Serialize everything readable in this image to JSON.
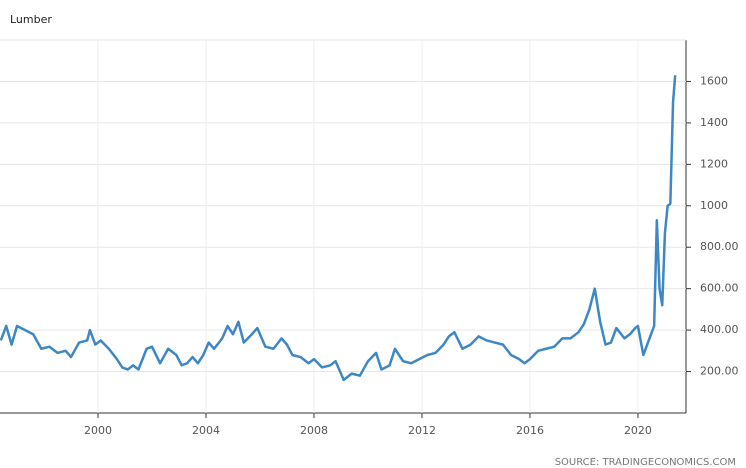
{
  "chart_data": {
    "type": "line",
    "title": "Lumber",
    "source": "SOURCE: TRADINGECONOMICS.COM",
    "color": "#3d87c4",
    "grid": true,
    "xlim": [
      1996.37,
      2021.78
    ],
    "xticks": [
      2000,
      2004,
      2008,
      2012,
      2016,
      2020
    ],
    "ylim": [
      0,
      1800
    ],
    "yticks": [
      {
        "value": 200,
        "label": "200.00"
      },
      {
        "value": 400,
        "label": "400.00"
      },
      {
        "value": 600,
        "label": "600.00"
      },
      {
        "value": 800,
        "label": "800.00"
      },
      1000,
      1200,
      1400,
      1600
    ],
    "x": [
      1996.4,
      1996.6,
      1996.8,
      1997.0,
      1997.3,
      1997.6,
      1997.9,
      1998.2,
      1998.5,
      1998.8,
      1999.0,
      1999.3,
      1999.6,
      1999.7,
      1999.9,
      2000.1,
      2000.4,
      2000.7,
      2000.9,
      2001.1,
      2001.3,
      2001.5,
      2001.8,
      2002.0,
      2002.3,
      2002.6,
      2002.9,
      2003.1,
      2003.3,
      2003.5,
      2003.7,
      2003.9,
      2004.1,
      2004.3,
      2004.6,
      2004.8,
      2005.0,
      2005.2,
      2005.4,
      2005.7,
      2005.9,
      2006.2,
      2006.5,
      2006.8,
      2007.0,
      2007.2,
      2007.5,
      2007.8,
      2008.0,
      2008.3,
      2008.6,
      2008.8,
      2009.1,
      2009.4,
      2009.7,
      2010.0,
      2010.3,
      2010.5,
      2010.8,
      2011.0,
      2011.3,
      2011.6,
      2011.9,
      2012.2,
      2012.5,
      2012.8,
      2013.0,
      2013.2,
      2013.5,
      2013.8,
      2014.1,
      2014.4,
      2014.7,
      2015.0,
      2015.3,
      2015.6,
      2015.8,
      2016.0,
      2016.3,
      2016.6,
      2016.9,
      2017.2,
      2017.5,
      2017.8,
      2018.0,
      2018.2,
      2018.4,
      2018.6,
      2018.8,
      2019.0,
      2019.2,
      2019.5,
      2019.7,
      2019.9,
      2020.0,
      2020.2,
      2020.4,
      2020.6,
      2020.7,
      2020.8,
      2020.9,
      2021.0,
      2021.1,
      2021.2,
      2021.3,
      2021.38
    ],
    "values": [
      350,
      420,
      330,
      420,
      400,
      380,
      310,
      320,
      290,
      300,
      270,
      340,
      350,
      400,
      330,
      350,
      310,
      260,
      220,
      210,
      230,
      210,
      310,
      320,
      240,
      310,
      280,
      230,
      240,
      270,
      240,
      280,
      340,
      310,
      360,
      420,
      380,
      440,
      340,
      380,
      410,
      320,
      310,
      360,
      330,
      280,
      270,
      240,
      260,
      220,
      230,
      250,
      160,
      190,
      180,
      250,
      290,
      210,
      230,
      310,
      250,
      240,
      260,
      280,
      290,
      330,
      370,
      390,
      310,
      330,
      370,
      350,
      340,
      330,
      280,
      260,
      240,
      260,
      300,
      310,
      320,
      360,
      360,
      390,
      430,
      500,
      600,
      440,
      330,
      340,
      410,
      360,
      380,
      410,
      420,
      280,
      350,
      420,
      930,
      600,
      520,
      870,
      1000,
      1010,
      1500,
      1630
    ]
  }
}
